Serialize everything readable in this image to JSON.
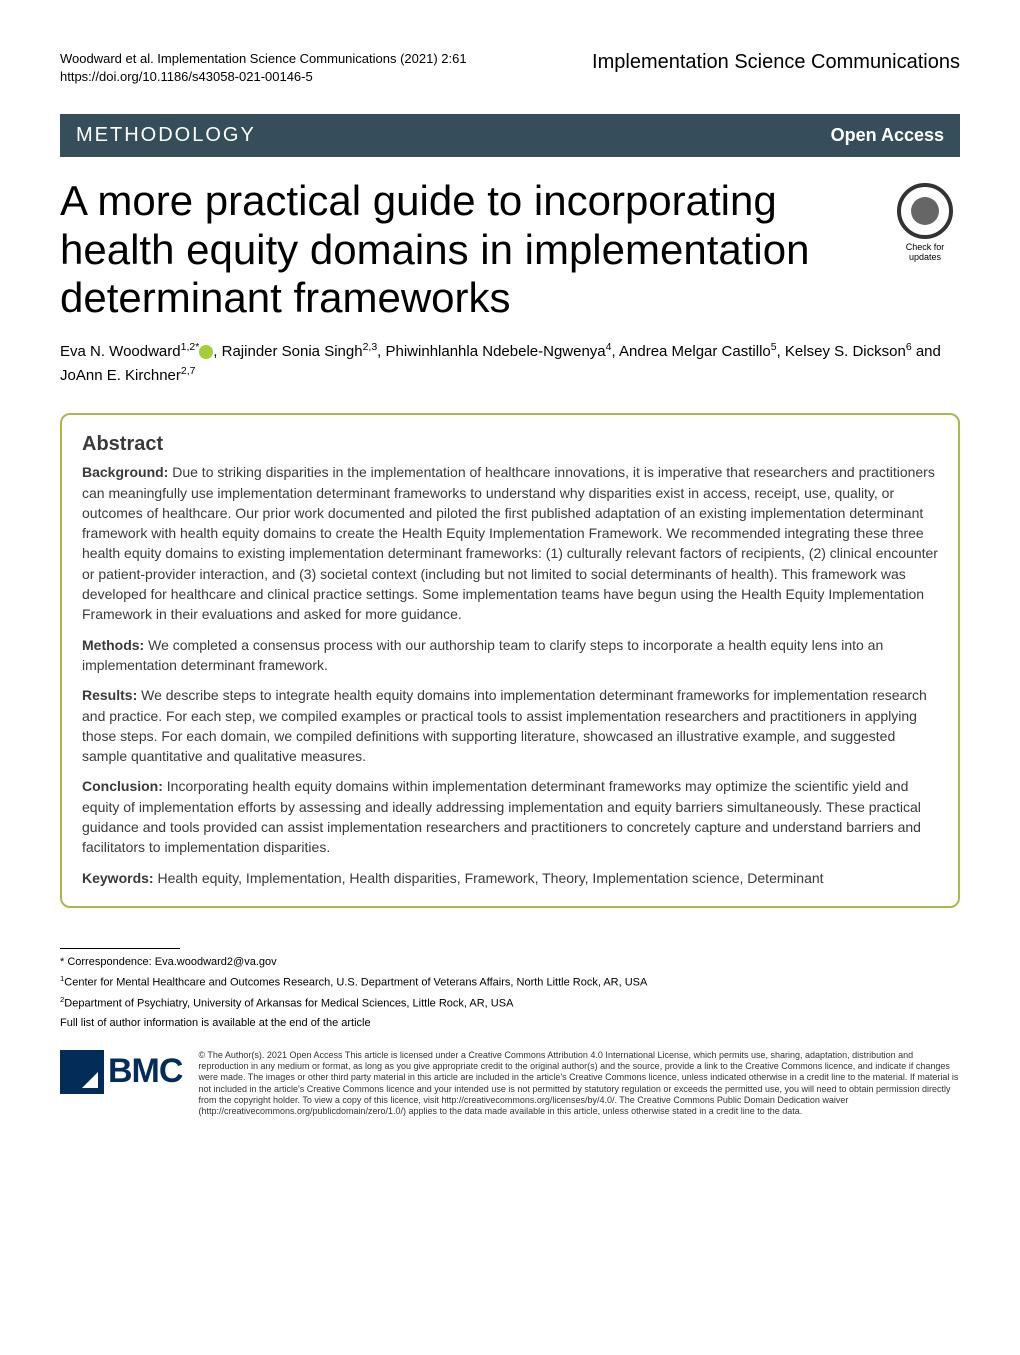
{
  "header": {
    "citation_line1": "Woodward et al. Implementation Science Communications         (2021) 2:61",
    "citation_line2": "https://doi.org/10.1186/s43058-021-00146-5",
    "journal_name": "Implementation Science Communications"
  },
  "section_bar": {
    "label": "METHODOLOGY",
    "open_access": "Open Access"
  },
  "title": "A more practical guide to incorporating health equity domains in implementation determinant frameworks",
  "check_updates_label": "Check for updates",
  "authors_html": "Eva N. Woodward<sup>1,2*</sup>, Rajinder Sonia Singh<sup>2,3</sup>, Phiwinhlanhla Ndebele-Ngwenya<sup>4</sup>, Andrea Melgar Castillo<sup>5</sup>, Kelsey S. Dickson<sup>6</sup> and JoAnn E. Kirchner<sup>2,7</sup>",
  "abstract": {
    "heading": "Abstract",
    "background_label": "Background:",
    "background_text": "Due to striking disparities in the implementation of healthcare innovations, it is imperative that researchers and practitioners can meaningfully use implementation determinant frameworks to understand why disparities exist in access, receipt, use, quality, or outcomes of healthcare. Our prior work documented and piloted the first published adaptation of an existing implementation determinant framework with health equity domains to create the Health Equity Implementation Framework. We recommended integrating these three health equity domains to existing implementation determinant frameworks: (1) culturally relevant factors of recipients, (2) clinical encounter or patient-provider interaction, and (3) societal context (including but not limited to social determinants of health). This framework was developed for healthcare and clinical practice settings. Some implementation teams have begun using the Health Equity Implementation Framework in their evaluations and asked for more guidance.",
    "methods_label": "Methods:",
    "methods_text": "We completed a consensus process with our authorship team to clarify steps to incorporate a health equity lens into an implementation determinant framework.",
    "results_label": "Results:",
    "results_text": "We describe steps to integrate health equity domains into implementation determinant frameworks for implementation research and practice. For each step, we compiled examples or practical tools to assist implementation researchers and practitioners in applying those steps. For each domain, we compiled definitions with supporting literature, showcased an illustrative example, and suggested sample quantitative and qualitative measures.",
    "conclusion_label": "Conclusion:",
    "conclusion_text": "Incorporating health equity domains within implementation determinant frameworks may optimize the scientific yield and equity of implementation efforts by assessing and ideally addressing implementation and equity barriers simultaneously. These practical guidance and tools provided can assist implementation researchers and practitioners to concretely capture and understand barriers and facilitators to implementation disparities.",
    "keywords_label": "Keywords:",
    "keywords_text": "Health equity, Implementation, Health disparities, Framework, Theory, Implementation science, Determinant"
  },
  "footer": {
    "correspondence": "* Correspondence: Eva.woodward2@va.gov",
    "affil1": "Center for Mental Healthcare and Outcomes Research, U.S. Department of Veterans Affairs, North Little Rock, AR, USA",
    "affil2": "Department of Psychiatry, University of Arkansas for Medical Sciences, Little Rock, AR, USA",
    "affil_more": "Full list of author information is available at the end of the article",
    "bmc_label": "BMC",
    "license": "© The Author(s). 2021 Open Access This article is licensed under a Creative Commons Attribution 4.0 International License, which permits use, sharing, adaptation, distribution and reproduction in any medium or format, as long as you give appropriate credit to the original author(s) and the source, provide a link to the Creative Commons licence, and indicate if changes were made. The images or other third party material in this article are included in the article's Creative Commons licence, unless indicated otherwise in a credit line to the material. If material is not included in the article's Creative Commons licence and your intended use is not permitted by statutory regulation or exceeds the permitted use, you will need to obtain permission directly from the copyright holder. To view a copy of this licence, visit http://creativecommons.org/licenses/by/4.0/. The Creative Commons Public Domain Dedication waiver (http://creativecommons.org/publicdomain/zero/1.0/) applies to the data made available in this article, unless otherwise stated in a credit line to the data."
  },
  "colors": {
    "section_bar_bg": "#364e59",
    "abstract_border": "#a8b94e",
    "bmc_blue": "#042c58",
    "orcid_green": "#a6ce39"
  }
}
